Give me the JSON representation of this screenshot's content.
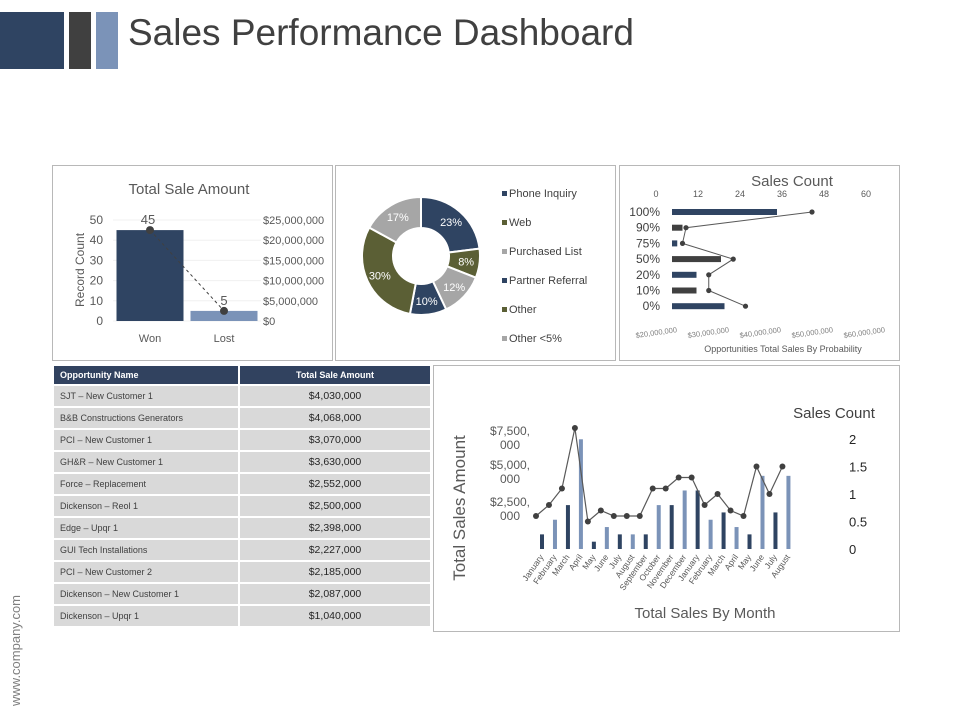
{
  "header": {
    "title": "Sales Performance Dashboard",
    "block_colors": [
      "#2f4462",
      "#404040",
      "#7b93b8"
    ]
  },
  "footer": {
    "url": "www.company.com"
  },
  "colors": {
    "navy": "#2f4462",
    "steel": "#8a9fc0",
    "olive": "#5b5f35",
    "grey": "#a6a6a6",
    "line": "#595959"
  },
  "table": {
    "columns": [
      "Opportunity Name",
      "Total Sale Amount"
    ],
    "rows": [
      [
        "SJT – New Customer 1",
        "$4,030,000"
      ],
      [
        "B&B Constructions Generators",
        "$4,068,000"
      ],
      [
        "PCI – New Customer 1",
        "$3,070,000"
      ],
      [
        "GH&R – New Customer 1",
        "$3,630,000"
      ],
      [
        "Force – Replacement",
        "$2,552,000"
      ],
      [
        "Dickenson – Reol 1",
        "$2,500,000"
      ],
      [
        "Edge – Upqr 1",
        "$2,398,000"
      ],
      [
        "GUI Tech Installations",
        "$2,227,000"
      ],
      [
        "PCI – New Customer 2",
        "$2,185,000"
      ],
      [
        "Dickenson – New Customer 1",
        "$2,087,000"
      ],
      [
        "Dickenson – Upqr 1",
        "$1,040,000"
      ]
    ]
  },
  "chart_data": [
    {
      "type": "bar",
      "title": "Total Sale Amount",
      "ylabel": "Record Count",
      "categories": [
        "Won",
        "Lost"
      ],
      "ylim": [
        0,
        50
      ],
      "yticks": [
        "0",
        "10",
        "20",
        "30",
        "40",
        "50"
      ],
      "y2ticks": [
        "$0",
        "$5,000,000",
        "$10,000,000",
        "$15,000,000",
        "$20,000,000",
        "$25,000,000"
      ],
      "series": [
        {
          "values": [
            45,
            5
          ],
          "data_labels": [
            "45",
            "5"
          ]
        }
      ],
      "line_values": [
        45,
        5
      ],
      "colors": [
        "#2f4462",
        "#7b93b8"
      ]
    },
    {
      "type": "pie",
      "donut": true,
      "slices": [
        {
          "label": "Phone Inquiry",
          "value": 23,
          "text": "23%",
          "color": "#2f4462"
        },
        {
          "label": "Web",
          "value": 8,
          "text": "8%",
          "color": "#5b5f35"
        },
        {
          "label": "Purchased List",
          "value": 12,
          "text": "12%",
          "color": "#a6a6a6"
        },
        {
          "label": "Partner Referral",
          "value": 10,
          "text": "10%",
          "color": "#2f4462"
        },
        {
          "label": "Other",
          "value": 30,
          "text": "30%",
          "color": "#5b5f35"
        },
        {
          "label": "Other <5%",
          "value": 17,
          "text": "17%",
          "color": "#a6a6a6"
        }
      ],
      "legend": [
        "Phone Inquiry",
        "Web",
        "Purchased List",
        "Partner Referral",
        "Other",
        "Other <5%"
      ]
    },
    {
      "type": "bar",
      "orientation": "horizontal",
      "title": "Sales Count",
      "xlabel": "Opportunities Total Sales By Probability",
      "categories": [
        "100%",
        "90%",
        "75%",
        "50%",
        "20%",
        "10%",
        "0%"
      ],
      "xticks_top": [
        "0",
        "12",
        "24",
        "36",
        "48",
        "60"
      ],
      "xticks_bottom": [
        "$20,000,000",
        "$30,000,000",
        "$40,000,000",
        "$50,000,000",
        "$60,000,000"
      ],
      "xlim": [
        0,
        60
      ],
      "bar_values": [
        30,
        3,
        1.5,
        14,
        7,
        7,
        15
      ],
      "bar_colors": [
        "#2f4462",
        "#404040",
        "#2f4462",
        "#404040",
        "#2f4462",
        "#404040",
        "#2f4462"
      ],
      "line_values": [
        40,
        4,
        3,
        17.5,
        10.5,
        10.5,
        21
      ]
    },
    {
      "type": "bar",
      "title": "Sales Count",
      "xlabel": "Total Sales By Month",
      "ylabel": "Total Sales Amount",
      "categories": [
        "January",
        "February",
        "March",
        "April",
        "May",
        "June",
        "July",
        "August",
        "September",
        "October",
        "November",
        "December",
        "January",
        "February",
        "March",
        "April",
        "May",
        "June",
        "July",
        "August"
      ],
      "yticks": [
        "$2,500,000",
        "$5,000,000",
        "$7,500,000"
      ],
      "y2ticks": [
        "0",
        "0.5",
        "1",
        "1.5",
        "2"
      ],
      "ylim": [
        0,
        10000000
      ],
      "y2lim": [
        0,
        2
      ],
      "bar_values": [
        1000000,
        2000000,
        3000000,
        7500000,
        500000,
        1500000,
        1000000,
        1000000,
        1000000,
        3000000,
        3000000,
        4000000,
        4000000,
        2000000,
        2500000,
        1500000,
        1000000,
        5000000,
        2500000,
        5000000
      ],
      "bar_colors": [
        "#2f4462",
        "#7b93b8",
        "#2f4462",
        "#7b93b8",
        "#2f4462",
        "#7b93b8",
        "#2f4462",
        "#7b93b8",
        "#2f4462",
        "#7b93b8",
        "#2f4462",
        "#7b93b8",
        "#2f4462",
        "#7b93b8",
        "#2f4462",
        "#7b93b8",
        "#2f4462",
        "#7b93b8",
        "#2f4462",
        "#7b93b8"
      ],
      "line_values": [
        0.6,
        0.8,
        1.1,
        2.2,
        0.5,
        0.7,
        0.6,
        0.6,
        0.6,
        1.1,
        1.1,
        1.3,
        1.3,
        0.8,
        1.0,
        0.7,
        0.6,
        1.5,
        1.0,
        1.5
      ]
    }
  ]
}
